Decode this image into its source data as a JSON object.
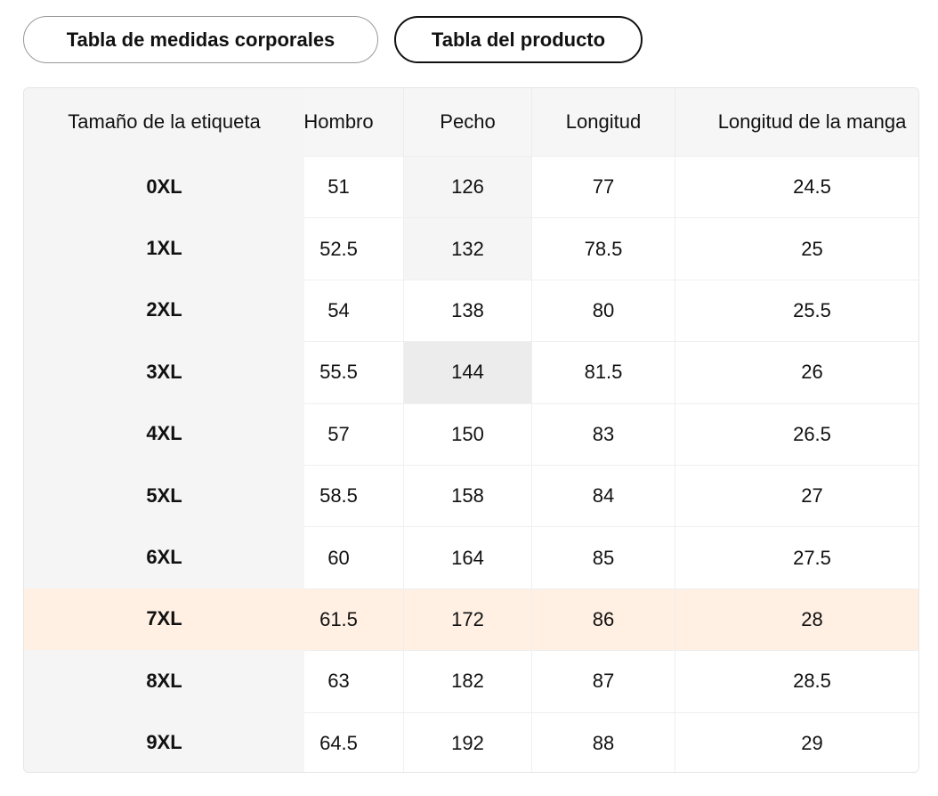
{
  "tabs": [
    "Tabla de medidas corporales",
    "Tabla del producto"
  ],
  "table": {
    "headers": [
      "Tamaño de la etiqueta",
      "Hombro",
      "Pecho",
      "Longitud",
      "Longitud de la manga"
    ],
    "rows": [
      [
        "0XL",
        "51",
        "126",
        "77",
        "24.5"
      ],
      [
        "1XL",
        "52.5",
        "132",
        "78.5",
        "25"
      ],
      [
        "2XL",
        "54",
        "138",
        "80",
        "25.5"
      ],
      [
        "3XL",
        "55.5",
        "144",
        "81.5",
        "26"
      ],
      [
        "4XL",
        "57",
        "150",
        "83",
        "26.5"
      ],
      [
        "5XL",
        "58.5",
        "158",
        "84",
        "27"
      ],
      [
        "6XL",
        "60",
        "164",
        "85",
        "27.5"
      ],
      [
        "7XL",
        "61.5",
        "172",
        "86",
        "28"
      ],
      [
        "8XL",
        "63",
        "182",
        "87",
        "28.5"
      ],
      [
        "9XL",
        "64.5",
        "192",
        "88",
        "29"
      ]
    ]
  }
}
